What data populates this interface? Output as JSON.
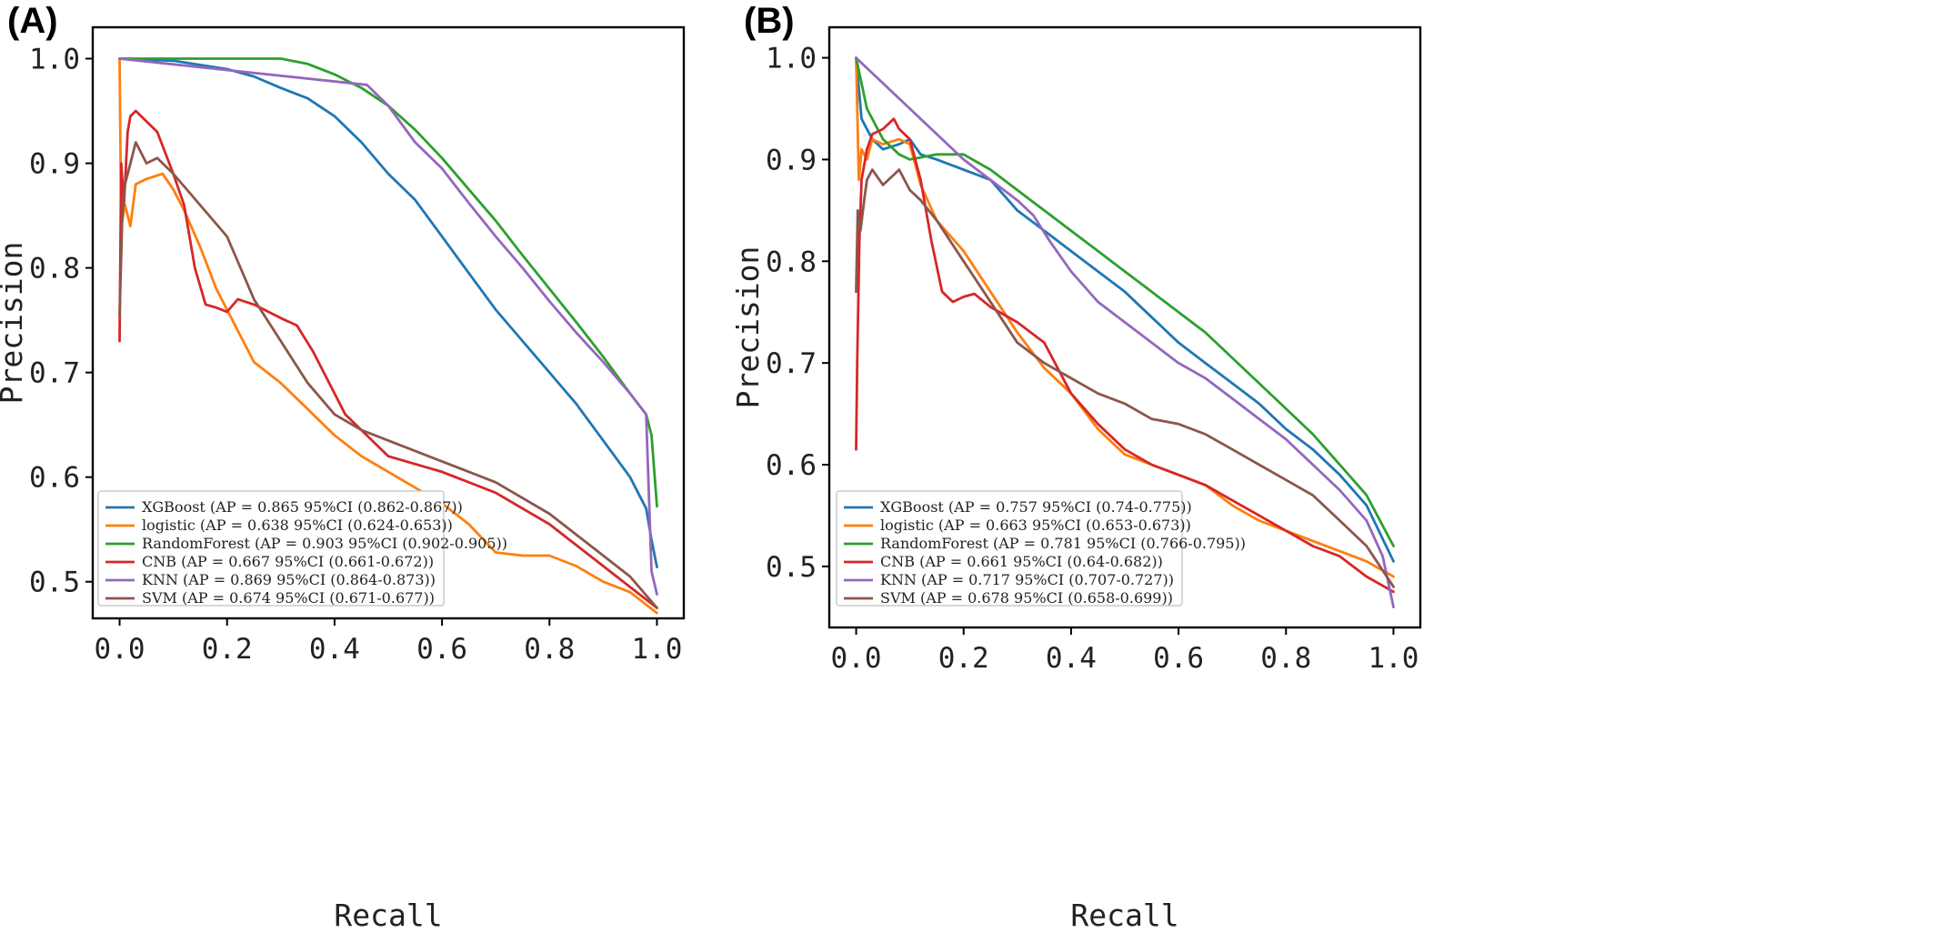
{
  "colors": {
    "XGBoost": "#1f77b4",
    "logistic": "#ff7f0e",
    "RandomForest": "#2ca02c",
    "CNB": "#d62728",
    "KNN": "#9467bd",
    "SVM": "#8c564b"
  },
  "chart_data": [
    {
      "type": "line",
      "panel": "(A)",
      "xlabel": "Recall",
      "ylabel": "Precision",
      "xlim": [
        -0.05,
        1.05
      ],
      "ylim": [
        0.465,
        1.03
      ],
      "xticks": [
        "0.0",
        "0.2",
        "0.4",
        "0.6",
        "0.8",
        "1.0"
      ],
      "yticks": [
        "0.5",
        "0.6",
        "0.7",
        "0.8",
        "0.9",
        "1.0"
      ],
      "legend_position": "lower-left",
      "series": [
        {
          "name": "XGBoost",
          "legend": "XGBoost (AP = 0.865 95%CI (0.862-0.867))",
          "x": [
            0,
            0.1,
            0.2,
            0.25,
            0.3,
            0.35,
            0.4,
            0.45,
            0.5,
            0.55,
            0.6,
            0.65,
            0.7,
            0.75,
            0.8,
            0.85,
            0.9,
            0.95,
            0.98,
            0.99,
            1.0
          ],
          "y": [
            1.0,
            0.998,
            0.99,
            0.983,
            0.972,
            0.962,
            0.945,
            0.92,
            0.89,
            0.865,
            0.83,
            0.795,
            0.76,
            0.73,
            0.7,
            0.67,
            0.635,
            0.6,
            0.57,
            0.54,
            0.514
          ]
        },
        {
          "name": "logistic",
          "legend": "logistic (AP = 0.638 95%CI (0.624-0.653))",
          "x": [
            0,
            0.003,
            0.01,
            0.02,
            0.03,
            0.05,
            0.08,
            0.1,
            0.12,
            0.15,
            0.18,
            0.22,
            0.25,
            0.3,
            0.35,
            0.4,
            0.45,
            0.5,
            0.55,
            0.6,
            0.65,
            0.7,
            0.75,
            0.8,
            0.85,
            0.9,
            0.95,
            1.0
          ],
          "y": [
            1.0,
            0.84,
            0.86,
            0.84,
            0.88,
            0.885,
            0.89,
            0.875,
            0.855,
            0.82,
            0.78,
            0.74,
            0.71,
            0.69,
            0.665,
            0.64,
            0.62,
            0.605,
            0.59,
            0.575,
            0.555,
            0.528,
            0.525,
            0.525,
            0.515,
            0.5,
            0.49,
            0.47
          ]
        },
        {
          "name": "RandomForest",
          "legend": "RandomForest (AP = 0.903 95%CI (0.902-0.905))",
          "x": [
            0,
            0.1,
            0.2,
            0.3,
            0.35,
            0.4,
            0.45,
            0.5,
            0.55,
            0.6,
            0.65,
            0.7,
            0.75,
            0.8,
            0.85,
            0.9,
            0.95,
            0.98,
            0.99,
            1.0
          ],
          "y": [
            1.0,
            1.0,
            1.0,
            1.0,
            0.995,
            0.985,
            0.972,
            0.955,
            0.932,
            0.905,
            0.875,
            0.845,
            0.812,
            0.78,
            0.748,
            0.715,
            0.68,
            0.66,
            0.64,
            0.572
          ]
        },
        {
          "name": "CNB",
          "legend": "CNB (AP = 0.667 95%CI (0.661-0.672))",
          "x": [
            0,
            0.003,
            0.008,
            0.015,
            0.02,
            0.03,
            0.05,
            0.07,
            0.1,
            0.12,
            0.14,
            0.16,
            0.18,
            0.2,
            0.22,
            0.25,
            0.3,
            0.33,
            0.36,
            0.38,
            0.42,
            0.5,
            0.6,
            0.7,
            0.8,
            0.9,
            0.95,
            1.0
          ],
          "y": [
            0.73,
            0.9,
            0.86,
            0.93,
            0.945,
            0.95,
            0.94,
            0.93,
            0.89,
            0.86,
            0.8,
            0.765,
            0.762,
            0.758,
            0.77,
            0.765,
            0.752,
            0.745,
            0.72,
            0.7,
            0.66,
            0.62,
            0.605,
            0.585,
            0.555,
            0.515,
            0.495,
            0.475
          ]
        },
        {
          "name": "KNN",
          "legend": "KNN (AP = 0.869 95%CI (0.864-0.873))",
          "x": [
            0,
            0.46,
            0.5,
            0.55,
            0.6,
            0.65,
            0.7,
            0.75,
            0.8,
            0.85,
            0.9,
            0.95,
            0.98,
            0.99,
            1.0
          ],
          "y": [
            1.0,
            0.975,
            0.955,
            0.92,
            0.895,
            0.862,
            0.83,
            0.8,
            0.768,
            0.738,
            0.71,
            0.68,
            0.66,
            0.51,
            0.488
          ]
        },
        {
          "name": "SVM",
          "legend": "SVM (AP = 0.674 95%CI (0.671-0.677))",
          "x": [
            0,
            0.005,
            0.01,
            0.02,
            0.03,
            0.05,
            0.07,
            0.1,
            0.15,
            0.2,
            0.25,
            0.3,
            0.35,
            0.4,
            0.45,
            0.5,
            0.6,
            0.7,
            0.8,
            0.9,
            0.95,
            1.0
          ],
          "y": [
            0.755,
            0.85,
            0.88,
            0.9,
            0.92,
            0.9,
            0.905,
            0.89,
            0.86,
            0.83,
            0.77,
            0.73,
            0.69,
            0.66,
            0.645,
            0.635,
            0.615,
            0.595,
            0.565,
            0.525,
            0.505,
            0.475
          ]
        }
      ]
    },
    {
      "type": "line",
      "panel": "(B)",
      "xlabel": "Recall",
      "ylabel": "Precision",
      "xlim": [
        -0.05,
        1.05
      ],
      "ylim": [
        0.44,
        1.03
      ],
      "xticks": [
        "0.0",
        "0.2",
        "0.4",
        "0.6",
        "0.8",
        "1.0"
      ],
      "yticks": [
        "0.5",
        "0.6",
        "0.7",
        "0.8",
        "0.9",
        "1.0"
      ],
      "legend_position": "lower-left",
      "series": [
        {
          "name": "XGBoost",
          "legend": "XGBoost (AP = 0.757 95%CI (0.74-0.775))",
          "x": [
            0,
            0.01,
            0.03,
            0.05,
            0.08,
            0.1,
            0.12,
            0.15,
            0.2,
            0.25,
            0.3,
            0.35,
            0.4,
            0.45,
            0.5,
            0.55,
            0.6,
            0.65,
            0.7,
            0.75,
            0.8,
            0.85,
            0.9,
            0.95,
            1.0
          ],
          "y": [
            1.0,
            0.94,
            0.92,
            0.91,
            0.915,
            0.92,
            0.905,
            0.9,
            0.89,
            0.88,
            0.85,
            0.83,
            0.81,
            0.79,
            0.77,
            0.745,
            0.72,
            0.7,
            0.68,
            0.66,
            0.635,
            0.615,
            0.59,
            0.56,
            0.505
          ]
        },
        {
          "name": "logistic",
          "legend": "logistic (AP = 0.663 95%CI (0.653-0.673))",
          "x": [
            0,
            0.005,
            0.01,
            0.02,
            0.03,
            0.05,
            0.08,
            0.1,
            0.12,
            0.15,
            0.2,
            0.25,
            0.3,
            0.35,
            0.4,
            0.45,
            0.5,
            0.55,
            0.6,
            0.65,
            0.7,
            0.75,
            0.8,
            0.85,
            0.9,
            0.95,
            1.0
          ],
          "y": [
            1.0,
            0.88,
            0.91,
            0.9,
            0.92,
            0.915,
            0.92,
            0.915,
            0.875,
            0.84,
            0.81,
            0.77,
            0.73,
            0.695,
            0.67,
            0.635,
            0.61,
            0.6,
            0.59,
            0.58,
            0.56,
            0.545,
            0.535,
            0.525,
            0.515,
            0.505,
            0.49
          ]
        },
        {
          "name": "RandomForest",
          "legend": "RandomForest (AP = 0.781 95%CI (0.766-0.795))",
          "x": [
            0,
            0.02,
            0.05,
            0.08,
            0.1,
            0.15,
            0.2,
            0.25,
            0.3,
            0.35,
            0.4,
            0.45,
            0.5,
            0.55,
            0.6,
            0.65,
            0.7,
            0.75,
            0.8,
            0.85,
            0.9,
            0.95,
            1.0
          ],
          "y": [
            1.0,
            0.95,
            0.92,
            0.905,
            0.9,
            0.905,
            0.905,
            0.89,
            0.87,
            0.85,
            0.83,
            0.81,
            0.79,
            0.77,
            0.75,
            0.73,
            0.705,
            0.68,
            0.655,
            0.63,
            0.6,
            0.57,
            0.52
          ]
        },
        {
          "name": "CNB",
          "legend": "CNB (AP = 0.661 95%CI (0.64-0.682))",
          "x": [
            0,
            0.002,
            0.006,
            0.01,
            0.02,
            0.03,
            0.05,
            0.07,
            0.08,
            0.1,
            0.12,
            0.14,
            0.16,
            0.18,
            0.2,
            0.22,
            0.25,
            0.3,
            0.35,
            0.4,
            0.45,
            0.5,
            0.55,
            0.6,
            0.65,
            0.7,
            0.75,
            0.8,
            0.85,
            0.9,
            0.95,
            1.0
          ],
          "y": [
            0.615,
            0.7,
            0.82,
            0.88,
            0.91,
            0.925,
            0.93,
            0.94,
            0.93,
            0.92,
            0.88,
            0.82,
            0.77,
            0.76,
            0.765,
            0.768,
            0.755,
            0.74,
            0.72,
            0.67,
            0.64,
            0.615,
            0.6,
            0.59,
            0.58,
            0.565,
            0.55,
            0.535,
            0.52,
            0.51,
            0.49,
            0.475
          ]
        },
        {
          "name": "KNN",
          "legend": "KNN (AP = 0.717 95%CI (0.707-0.727))",
          "x": [
            0,
            0.1,
            0.2,
            0.3,
            0.33,
            0.36,
            0.4,
            0.45,
            0.5,
            0.55,
            0.6,
            0.65,
            0.7,
            0.75,
            0.8,
            0.85,
            0.9,
            0.95,
            0.98,
            1.0
          ],
          "y": [
            1.0,
            0.95,
            0.9,
            0.86,
            0.845,
            0.82,
            0.79,
            0.76,
            0.74,
            0.72,
            0.7,
            0.685,
            0.665,
            0.645,
            0.625,
            0.6,
            0.575,
            0.545,
            0.51,
            0.46
          ]
        },
        {
          "name": "SVM",
          "legend": "SVM (AP = 0.678 95%CI (0.658-0.699))",
          "x": [
            0,
            0.003,
            0.008,
            0.015,
            0.02,
            0.03,
            0.05,
            0.08,
            0.1,
            0.12,
            0.15,
            0.2,
            0.25,
            0.3,
            0.35,
            0.4,
            0.45,
            0.5,
            0.55,
            0.6,
            0.65,
            0.7,
            0.75,
            0.8,
            0.85,
            0.9,
            0.95,
            1.0
          ],
          "y": [
            0.77,
            0.85,
            0.83,
            0.86,
            0.88,
            0.89,
            0.875,
            0.89,
            0.87,
            0.86,
            0.84,
            0.8,
            0.76,
            0.72,
            0.7,
            0.685,
            0.67,
            0.66,
            0.645,
            0.64,
            0.63,
            0.615,
            0.6,
            0.585,
            0.57,
            0.545,
            0.52,
            0.48
          ]
        }
      ]
    }
  ]
}
